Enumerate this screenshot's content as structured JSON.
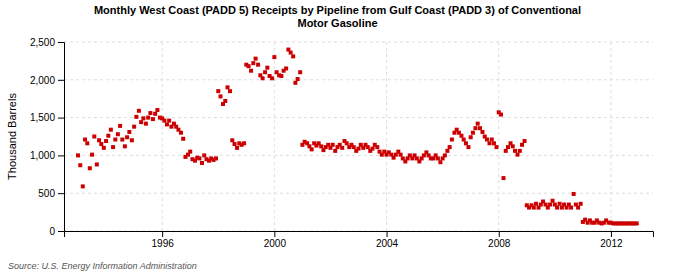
{
  "chart_data": {
    "type": "scatter",
    "title": "Monthly West Coast (PADD 5) Receipts by Pipeline from Gulf Coast (PADD 3) of Conventional\nMotor Gasoline",
    "ylabel": "Thousand Barrels",
    "annotations": [
      "Source: U.S. Energy Information Administration"
    ],
    "color": "#cc0000",
    "marker": "square",
    "grid": true,
    "xlim": [
      1992.5,
      2013.5
    ],
    "xticks": [
      1996,
      2000,
      2004,
      2008,
      2012
    ],
    "ylim": [
      0,
      2500
    ],
    "yticks": [
      0,
      500,
      {
        "value": 1000,
        "label": "1,000"
      },
      {
        "value": 1500,
        "label": "1,500"
      },
      {
        "value": 2000,
        "label": "2,000"
      },
      {
        "value": 2500,
        "label": "2,500"
      }
    ],
    "x": [
      1993.0,
      1993.08,
      1993.17,
      1993.25,
      1993.33,
      1993.42,
      1993.5,
      1993.58,
      1993.67,
      1993.75,
      1993.83,
      1993.92,
      1994.0,
      1994.08,
      1994.17,
      1994.25,
      1994.33,
      1994.42,
      1994.5,
      1994.58,
      1994.67,
      1994.75,
      1994.83,
      1994.92,
      1995.0,
      1995.08,
      1995.17,
      1995.25,
      1995.33,
      1995.42,
      1995.5,
      1995.58,
      1995.67,
      1995.75,
      1995.83,
      1995.92,
      1996.0,
      1996.08,
      1996.17,
      1996.25,
      1996.33,
      1996.42,
      1996.5,
      1996.58,
      1996.67,
      1996.75,
      1996.83,
      1996.92,
      1997.0,
      1997.08,
      1997.17,
      1997.25,
      1997.33,
      1997.42,
      1997.5,
      1997.58,
      1997.67,
      1997.75,
      1997.83,
      1997.92,
      1998.0,
      1998.08,
      1998.17,
      1998.25,
      1998.33,
      1998.42,
      1998.5,
      1998.58,
      1998.67,
      1998.75,
      1998.83,
      1998.92,
      1999.0,
      1999.08,
      1999.17,
      1999.25,
      1999.33,
      1999.42,
      1999.5,
      1999.58,
      1999.67,
      1999.75,
      1999.83,
      1999.92,
      2000.0,
      2000.08,
      2000.17,
      2000.25,
      2000.33,
      2000.42,
      2000.5,
      2000.58,
      2000.67,
      2000.75,
      2000.83,
      2000.92,
      2001.0,
      2001.08,
      2001.17,
      2001.25,
      2001.33,
      2001.42,
      2001.5,
      2001.58,
      2001.67,
      2001.75,
      2001.83,
      2001.92,
      2002.0,
      2002.08,
      2002.17,
      2002.25,
      2002.33,
      2002.42,
      2002.5,
      2002.58,
      2002.67,
      2002.75,
      2002.83,
      2002.92,
      2003.0,
      2003.08,
      2003.17,
      2003.25,
      2003.33,
      2003.42,
      2003.5,
      2003.58,
      2003.67,
      2003.75,
      2003.83,
      2003.92,
      2004.0,
      2004.08,
      2004.17,
      2004.25,
      2004.33,
      2004.42,
      2004.5,
      2004.58,
      2004.67,
      2004.75,
      2004.83,
      2004.92,
      2005.0,
      2005.08,
      2005.17,
      2005.25,
      2005.33,
      2005.42,
      2005.5,
      2005.58,
      2005.67,
      2005.75,
      2005.83,
      2005.92,
      2006.0,
      2006.08,
      2006.17,
      2006.25,
      2006.33,
      2006.42,
      2006.5,
      2006.58,
      2006.67,
      2006.75,
      2006.83,
      2006.92,
      2007.0,
      2007.08,
      2007.17,
      2007.25,
      2007.33,
      2007.42,
      2007.5,
      2007.58,
      2007.67,
      2007.75,
      2007.83,
      2007.92,
      2008.0,
      2008.08,
      2008.17,
      2008.25,
      2008.33,
      2008.42,
      2008.5,
      2008.58,
      2008.67,
      2008.75,
      2008.83,
      2008.92,
      2009.0,
      2009.08,
      2009.17,
      2009.25,
      2009.33,
      2009.42,
      2009.5,
      2009.58,
      2009.67,
      2009.75,
      2009.83,
      2009.92,
      2010.0,
      2010.08,
      2010.17,
      2010.25,
      2010.33,
      2010.42,
      2010.5,
      2010.58,
      2010.67,
      2010.75,
      2010.83,
      2010.92,
      2011.0,
      2011.08,
      2011.17,
      2011.25,
      2011.33,
      2011.42,
      2011.5,
      2011.58,
      2011.67,
      2011.75,
      2011.83,
      2011.92,
      2012.0,
      2012.08,
      2012.17,
      2012.25,
      2012.33,
      2012.42,
      2012.5,
      2012.58,
      2012.67,
      2012.75,
      2012.83,
      2012.92
    ],
    "values": [
      1000,
      870,
      590,
      1210,
      1160,
      830,
      1010,
      1250,
      880,
      1200,
      1150,
      1100,
      1190,
      1260,
      1340,
      1110,
      1210,
      1280,
      1390,
      1210,
      1120,
      1240,
      1310,
      1200,
      1380,
      1510,
      1590,
      1440,
      1490,
      1420,
      1500,
      1560,
      1480,
      1550,
      1600,
      1500,
      1490,
      1460,
      1410,
      1460,
      1380,
      1420,
      1380,
      1340,
      1300,
      1220,
      980,
      1010,
      1050,
      950,
      930,
      970,
      960,
      900,
      1000,
      950,
      930,
      960,
      940,
      960,
      1850,
      1780,
      1680,
      1720,
      1900,
      1850,
      1200,
      1150,
      1100,
      1160,
      1140,
      1160,
      2200,
      2180,
      2120,
      2220,
      2280,
      2200,
      2060,
      2020,
      2100,
      2160,
      2050,
      2020,
      2300,
      2100,
      2060,
      2050,
      2120,
      2150,
      2400,
      2360,
      2310,
      1960,
      2010,
      2100,
      1140,
      1180,
      1160,
      1120,
      1080,
      1160,
      1130,
      1160,
      1120,
      1070,
      1110,
      1140,
      1100,
      1140,
      1060,
      1110,
      1140,
      1100,
      1190,
      1160,
      1110,
      1140,
      1110,
      1060,
      1090,
      1140,
      1100,
      1140,
      1110,
      1060,
      1090,
      1140,
      1110,
      1050,
      1010,
      1050,
      1010,
      1040,
      1010,
      970,
      1010,
      1050,
      1010,
      960,
      920,
      960,
      1000,
      960,
      1000,
      960,
      920,
      960,
      1000,
      1040,
      1000,
      960,
      960,
      1000,
      960,
      910,
      960,
      1000,
      1060,
      1110,
      1210,
      1300,
      1340,
      1300,
      1260,
      1210,
      1160,
      1110,
      1240,
      1300,
      1360,
      1420,
      1360,
      1310,
      1250,
      1210,
      1160,
      1210,
      1160,
      1110,
      1570,
      1540,
      700,
      1060,
      1110,
      1160,
      1120,
      1060,
      1010,
      1060,
      1140,
      1190,
      340,
      310,
      340,
      310,
      360,
      310,
      350,
      390,
      350,
      310,
      350,
      400,
      350,
      310,
      360,
      310,
      350,
      310,
      350,
      310,
      490,
      350,
      310,
      360,
      120,
      150,
      110,
      140,
      110,
      110,
      140,
      110,
      100,
      110,
      140,
      110,
      110,
      100,
      100,
      100,
      100,
      100,
      100,
      100,
      100,
      100,
      100,
      100
    ]
  }
}
